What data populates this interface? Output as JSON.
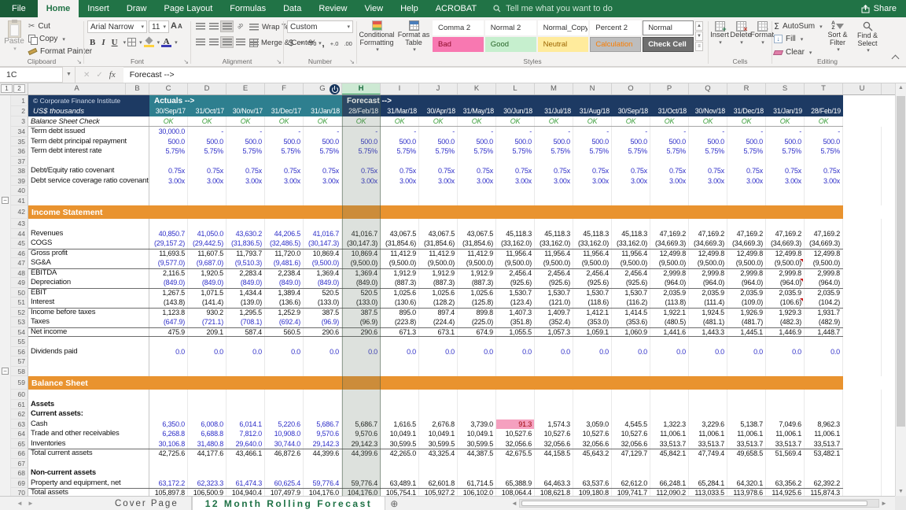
{
  "ribbon": {
    "tabs": [
      {
        "label": "File",
        "file": true
      },
      {
        "label": "Home",
        "active": true
      },
      {
        "label": "Insert"
      },
      {
        "label": "Draw"
      },
      {
        "label": "Page Layout"
      },
      {
        "label": "Formulas"
      },
      {
        "label": "Data"
      },
      {
        "label": "Review"
      },
      {
        "label": "View"
      },
      {
        "label": "Help"
      },
      {
        "label": "ACROBAT"
      }
    ],
    "tell_me": "Tell me what you want to do",
    "share_label": "Share",
    "groups": {
      "clipboard": {
        "label": "Clipboard",
        "paste": "Paste",
        "cut": "Cut",
        "copy": "Copy",
        "format_painter": "Format Painter"
      },
      "font": {
        "label": "Font",
        "font_name": "Arial Narrow",
        "font_size": "11",
        "bold": "B",
        "italic": "I",
        "underline": "U",
        "color_letter": "A",
        "grow": "A",
        "shrink": "A"
      },
      "alignment": {
        "label": "Alignment",
        "wrap_text": "Wrap Text",
        "merge_center": "Merge & Center"
      },
      "number": {
        "label": "Number",
        "format": "Custom",
        "currency": "$",
        "percent": "%",
        "comma": ",",
        "inc_dec": "+.0",
        "dec_dec": ".00"
      },
      "styles": {
        "label": "Styles",
        "conditional": "Conditional Formatting",
        "format_table": "Format as Table",
        "chips": [
          {
            "label": "Comma 2",
            "bg": "#ffffff",
            "fg": "#333333",
            "border": "#ffffff"
          },
          {
            "label": "Normal 2",
            "bg": "#ffffff",
            "fg": "#333333",
            "border": "#ffffff"
          },
          {
            "label": "Normal_Copy...",
            "bg": "#ffffff",
            "fg": "#333333",
            "border": "#ffffff"
          },
          {
            "label": "Percent 2",
            "bg": "#ffffff",
            "fg": "#333333",
            "border": "#ffffff"
          },
          {
            "label": "Normal",
            "bg": "#ffffff",
            "fg": "#333333",
            "border": "#8a8a8a"
          },
          {
            "label": "Bad",
            "bg": "#f878b1",
            "fg": "#8e0b2a",
            "border": "#f878b1"
          },
          {
            "label": "Good",
            "bg": "#c6efce",
            "fg": "#276427",
            "border": "#c6efce"
          },
          {
            "label": "Neutral",
            "bg": "#ffeb9c",
            "fg": "#9c6500",
            "border": "#ffeb9c"
          },
          {
            "label": "Calculation",
            "bg": "#bdbdbd",
            "fg": "#fa7d00",
            "border": "#a0a0a0"
          },
          {
            "label": "Check Cell",
            "bg": "#6f6f6f",
            "fg": "#ffffff",
            "border": "#4f4f4f",
            "bold": true
          }
        ]
      },
      "cells": {
        "label": "Cells",
        "buttons": [
          "Insert",
          "Delete",
          "Format"
        ]
      },
      "editing": {
        "label": "Editing",
        "autosum": "AutoSum",
        "fill": "Fill",
        "clear": "Clear",
        "sort": "Sort & Filter",
        "find": "Find & Select"
      }
    }
  },
  "formula_bar": {
    "name_box": "1C",
    "fx": "fx",
    "formula": "Forecast -->"
  },
  "sheet": {
    "column_letters": [
      "A",
      "B",
      "C",
      "D",
      "E",
      "F",
      "G",
      "H",
      "I",
      "J",
      "K",
      "L",
      "M",
      "N",
      "O",
      "P",
      "Q",
      "R",
      "S",
      "T",
      "U"
    ],
    "selected_column": "H",
    "outline_levels": [
      "1",
      "2"
    ],
    "colors": {
      "navy": "#1d3a63",
      "teal": "#2e7f8f",
      "orange": "#e9932f",
      "ok_green": "#3c9e3c",
      "input_blue": "#2e2ec8",
      "bad_bg": "#f5a0bf",
      "bad_fg": "#9c0006"
    },
    "rows": [
      {
        "n": 1,
        "kind": "title",
        "h": 14,
        "a": "© Corporate Finance Institute",
        "actuals": "Actuals -->",
        "forecast": "Forecast -->"
      },
      {
        "n": 2,
        "kind": "dates",
        "h": 13,
        "a": "US$ thousands",
        "values": [
          "30/Sep/17",
          "31/Oct/17",
          "30/Nov/17",
          "31/Dec/17",
          "31/Jan/18",
          "28/Feb/18",
          "31/Mar/18",
          "30/Apr/18",
          "31/May/18",
          "30/Jun/18",
          "31/Jul/18",
          "31/Aug/18",
          "30/Sep/18",
          "31/Oct/18",
          "30/Nov/18",
          "31/Dec/18",
          "31/Jan/19",
          "28/Feb/19"
        ]
      },
      {
        "n": 3,
        "kind": "ok",
        "h": 13,
        "label": "Balance Sheet Check",
        "bb": true,
        "values": [
          "OK",
          "OK",
          "OK",
          "OK",
          "OK",
          "OK",
          "OK",
          "OK",
          "OK",
          "OK",
          "OK",
          "OK",
          "OK",
          "OK",
          "OK",
          "OK",
          "OK",
          "OK"
        ]
      },
      {
        "n": 34,
        "kind": "data",
        "label": "Term debt issued",
        "color": "blue",
        "values": [
          "30,000.0",
          "-",
          "-",
          "-",
          "-",
          "-",
          "-",
          "-",
          "-",
          "-",
          "-",
          "-",
          "-",
          "-",
          "-",
          "-",
          "-",
          "-"
        ]
      },
      {
        "n": 35,
        "kind": "data",
        "label": "Term debt principal repayment",
        "color": "blue",
        "values": [
          "500.0",
          "500.0",
          "500.0",
          "500.0",
          "500.0",
          "500.0",
          "500.0",
          "500.0",
          "500.0",
          "500.0",
          "500.0",
          "500.0",
          "500.0",
          "500.0",
          "500.0",
          "500.0",
          "500.0",
          "500.0"
        ]
      },
      {
        "n": 36,
        "kind": "data",
        "label": "Term debt interest rate",
        "color": "blue",
        "values": [
          "5.75%",
          "5.75%",
          "5.75%",
          "5.75%",
          "5.75%",
          "5.75%",
          "5.75%",
          "5.75%",
          "5.75%",
          "5.75%",
          "5.75%",
          "5.75%",
          "5.75%",
          "5.75%",
          "5.75%",
          "5.75%",
          "5.75%",
          "5.75%"
        ]
      },
      {
        "n": 37,
        "kind": "blank"
      },
      {
        "n": 38,
        "kind": "data",
        "label": "Debt/Equity ratio covenant",
        "color": "blue",
        "values": [
          "0.75x",
          "0.75x",
          "0.75x",
          "0.75x",
          "0.75x",
          "0.75x",
          "0.75x",
          "0.75x",
          "0.75x",
          "0.75x",
          "0.75x",
          "0.75x",
          "0.75x",
          "0.75x",
          "0.75x",
          "0.75x",
          "0.75x",
          "0.75x"
        ]
      },
      {
        "n": 39,
        "kind": "data",
        "label": "Debt service coverage ratio covenant",
        "color": "blue",
        "values": [
          "3.00x",
          "3.00x",
          "3.00x",
          "3.00x",
          "3.00x",
          "3.00x",
          "3.00x",
          "3.00x",
          "3.00x",
          "3.00x",
          "3.00x",
          "3.00x",
          "3.00x",
          "3.00x",
          "3.00x",
          "3.00x",
          "3.00x",
          "3.00x"
        ]
      },
      {
        "n": 40,
        "kind": "blank"
      },
      {
        "n": 41,
        "kind": "blank",
        "outline": true
      },
      {
        "n": 42,
        "kind": "section",
        "h": 17,
        "label": "Income Statement"
      },
      {
        "n": 43,
        "kind": "blank"
      },
      {
        "n": 44,
        "kind": "data",
        "label": "Revenues",
        "color": "blue5",
        "values": [
          "40,850.7",
          "41,050.0",
          "43,630.2",
          "44,206.5",
          "41,016.7",
          "41,016.7",
          "43,067.5",
          "43,067.5",
          "43,067.5",
          "45,118.3",
          "45,118.3",
          "45,118.3",
          "45,118.3",
          "47,169.2",
          "47,169.2",
          "47,169.2",
          "47,169.2",
          "47,169.2"
        ]
      },
      {
        "n": 45,
        "kind": "data",
        "label": "COGS",
        "color": "blue5",
        "values": [
          "(29,157.2)",
          "(29,442.5)",
          "(31,836.5)",
          "(32,486.5)",
          "(30,147.3)",
          "(30,147.3)",
          "(31,854.6)",
          "(31,854.6)",
          "(31,854.6)",
          "(33,162.0)",
          "(33,162.0)",
          "(33,162.0)",
          "(33,162.0)",
          "(34,669.3)",
          "(34,669.3)",
          "(34,669.3)",
          "(34,669.3)",
          "(34,669.3)"
        ]
      },
      {
        "n": 46,
        "kind": "data",
        "label": "Gross profit",
        "bt": true,
        "values": [
          "11,693.5",
          "11,607.5",
          "11,793.7",
          "11,720.0",
          "10,869.4",
          "10,869.4",
          "11,412.9",
          "11,412.9",
          "11,412.9",
          "11,956.4",
          "11,956.4",
          "11,956.4",
          "11,956.4",
          "12,499.8",
          "12,499.8",
          "12,499.8",
          "12,499.8",
          "12,499.8"
        ]
      },
      {
        "n": 47,
        "kind": "data",
        "label": "SG&A",
        "color": "blue5",
        "flags": [
          16
        ],
        "values": [
          "(9,577.0)",
          "(9,687.0)",
          "(9,510.3)",
          "(9,481.6)",
          "(9,500.0)",
          "(9,500.0)",
          "(9,500.0)",
          "(9,500.0)",
          "(9,500.0)",
          "(9,500.0)",
          "(9,500.0)",
          "(9,500.0)",
          "(9,500.0)",
          "(9,500.0)",
          "(9,500.0)",
          "(9,500.0)",
          "(9,500.0)",
          "(9,500.0)"
        ]
      },
      {
        "n": 48,
        "kind": "data",
        "label": "EBITDA",
        "bt": true,
        "values": [
          "2,116.5",
          "1,920.5",
          "2,283.4",
          "2,238.4",
          "1,369.4",
          "1,369.4",
          "1,912.9",
          "1,912.9",
          "1,912.9",
          "2,456.4",
          "2,456.4",
          "2,456.4",
          "2,456.4",
          "2,999.8",
          "2,999.8",
          "2,999.8",
          "2,999.8",
          "2,999.8"
        ]
      },
      {
        "n": 49,
        "kind": "data",
        "label": "Depreciation",
        "color": "blue5",
        "flags": [
          16
        ],
        "values": [
          "(849.0)",
          "(849.0)",
          "(849.0)",
          "(849.0)",
          "(849.0)",
          "(849.0)",
          "(887.3)",
          "(887.3)",
          "(887.3)",
          "(925.6)",
          "(925.6)",
          "(925.6)",
          "(925.6)",
          "(964.0)",
          "(964.0)",
          "(964.0)",
          "(964.0)",
          "(964.0)"
        ]
      },
      {
        "n": 50,
        "kind": "data",
        "label": "EBIT",
        "bt": true,
        "values": [
          "1,267.5",
          "1,071.5",
          "1,434.4",
          "1,389.4",
          "520.5",
          "520.5",
          "1,025.6",
          "1,025.6",
          "1,025.6",
          "1,530.7",
          "1,530.7",
          "1,530.7",
          "1,530.7",
          "2,035.9",
          "2,035.9",
          "2,035.9",
          "2,035.9",
          "2,035.9"
        ]
      },
      {
        "n": 51,
        "kind": "data",
        "label": "Interest",
        "flags": [
          16
        ],
        "values": [
          "(143.8)",
          "(141.4)",
          "(139.0)",
          "(136.6)",
          "(133.0)",
          "(133.0)",
          "(130.6)",
          "(128.2)",
          "(125.8)",
          "(123.4)",
          "(121.0)",
          "(118.6)",
          "(116.2)",
          "(113.8)",
          "(111.4)",
          "(109.0)",
          "(106.6)",
          "(104.2)"
        ]
      },
      {
        "n": 52,
        "kind": "data",
        "label": "Income before taxes",
        "bt": true,
        "values": [
          "1,123.8",
          "930.2",
          "1,295.5",
          "1,252.9",
          "387.5",
          "387.5",
          "895.0",
          "897.4",
          "899.8",
          "1,407.3",
          "1,409.7",
          "1,412.1",
          "1,414.5",
          "1,922.1",
          "1,924.5",
          "1,926.9",
          "1,929.3",
          "1,931.7"
        ]
      },
      {
        "n": 53,
        "kind": "data",
        "label": "Taxes",
        "color": "blue5",
        "values": [
          "(647.9)",
          "(721.1)",
          "(708.1)",
          "(692.4)",
          "(96.9)",
          "(96.9)",
          "(223.8)",
          "(224.4)",
          "(225.0)",
          "(351.8)",
          "(352.4)",
          "(353.0)",
          "(353.6)",
          "(480.5)",
          "(481.1)",
          "(481.7)",
          "(482.3)",
          "(482.9)"
        ]
      },
      {
        "n": 54,
        "kind": "data",
        "label": "Net income",
        "bt": true,
        "bb": true,
        "values": [
          "475.9",
          "209.1",
          "587.4",
          "560.5",
          "290.6",
          "290.6",
          "671.3",
          "673.1",
          "674.9",
          "1,055.5",
          "1,057.3",
          "1,059.1",
          "1,060.9",
          "1,441.6",
          "1,443.3",
          "1,445.1",
          "1,446.9",
          "1,448.7"
        ]
      },
      {
        "n": 55,
        "kind": "blank"
      },
      {
        "n": 56,
        "kind": "data",
        "label": "Dividends paid",
        "color": "blue",
        "values": [
          "0.0",
          "0.0",
          "0.0",
          "0.0",
          "0.0",
          "0.0",
          "0.0",
          "0.0",
          "0.0",
          "0.0",
          "0.0",
          "0.0",
          "0.0",
          "0.0",
          "0.0",
          "0.0",
          "0.0",
          "0.0"
        ]
      },
      {
        "n": 57,
        "kind": "blank"
      },
      {
        "n": 58,
        "kind": "blank",
        "outline": true
      },
      {
        "n": 59,
        "kind": "section",
        "h": 17,
        "label": "Balance Sheet"
      },
      {
        "n": 60,
        "kind": "blank"
      },
      {
        "n": 61,
        "kind": "label",
        "label": "Assets"
      },
      {
        "n": 62,
        "kind": "label",
        "label": "Current assets:"
      },
      {
        "n": 63,
        "kind": "data",
        "label": "Cash",
        "color": "blue5",
        "bad": 9,
        "values": [
          "6,350.0",
          "6,008.0",
          "6,014.1",
          "5,220.6",
          "5,686.7",
          "5,686.7",
          "1,616.5",
          "2,676.8",
          "3,739.0",
          "91.3",
          "1,574.3",
          "3,059.0",
          "4,545.5",
          "1,322.3",
          "3,229.6",
          "5,138.7",
          "7,049.6",
          "8,962.3"
        ]
      },
      {
        "n": 64,
        "kind": "data",
        "label": "Trade and other receivables",
        "color": "blue5",
        "values": [
          "6,268.8",
          "6,688.8",
          "7,812.0",
          "10,908.0",
          "9,570.6",
          "9,570.6",
          "10,049.1",
          "10,049.1",
          "10,049.1",
          "10,527.6",
          "10,527.6",
          "10,527.6",
          "10,527.6",
          "11,006.1",
          "11,006.1",
          "11,006.1",
          "11,006.1",
          "11,006.1"
        ]
      },
      {
        "n": 65,
        "kind": "data",
        "label": "Inventories",
        "color": "blue5",
        "values": [
          "30,106.8",
          "31,480.8",
          "29,640.0",
          "30,744.0",
          "29,142.3",
          "29,142.3",
          "30,599.5",
          "30,599.5",
          "30,599.5",
          "32,056.6",
          "32,056.6",
          "32,056.6",
          "32,056.6",
          "33,513.7",
          "33,513.7",
          "33,513.7",
          "33,513.7",
          "33,513.7"
        ]
      },
      {
        "n": 66,
        "kind": "data",
        "label": "Total current assets",
        "bt": true,
        "values": [
          "42,725.6",
          "44,177.6",
          "43,466.1",
          "46,872.6",
          "44,399.6",
          "44,399.6",
          "42,265.0",
          "43,325.4",
          "44,387.5",
          "42,675.5",
          "44,158.5",
          "45,643.2",
          "47,129.7",
          "45,842.1",
          "47,749.4",
          "49,658.5",
          "51,569.4",
          "53,482.1"
        ]
      },
      {
        "n": 67,
        "kind": "blank"
      },
      {
        "n": 68,
        "kind": "label",
        "label": "Non-current assets"
      },
      {
        "n": 69,
        "kind": "data",
        "label": "Property and equipment, net",
        "color": "blue5",
        "values": [
          "63,172.2",
          "62,323.3",
          "61,474.3",
          "60,625.4",
          "59,776.4",
          "59,776.4",
          "63,489.1",
          "62,601.8",
          "61,714.5",
          "65,388.9",
          "64,463.3",
          "63,537.6",
          "62,612.0",
          "66,248.1",
          "65,284.1",
          "64,320.1",
          "63,356.2",
          "62,392.2"
        ]
      },
      {
        "n": 70,
        "kind": "data",
        "label": "Total assets",
        "bt": true,
        "values": [
          "105,897.8",
          "106,500.9",
          "104,940.4",
          "107,497.9",
          "104,176.0",
          "104,176.0",
          "105,754.1",
          "105,927.2",
          "106,102.0",
          "108,064.4",
          "108,621.8",
          "109,180.8",
          "109,741.7",
          "112,090.2",
          "113,033.5",
          "113,978.6",
          "114,925.6",
          "115,874.3"
        ]
      }
    ]
  },
  "sheet_tabs": {
    "tabs": [
      {
        "label": "Cover Page",
        "active": false
      },
      {
        "label": "12 Month Rolling Forecast",
        "active": true
      }
    ],
    "add": "+"
  }
}
